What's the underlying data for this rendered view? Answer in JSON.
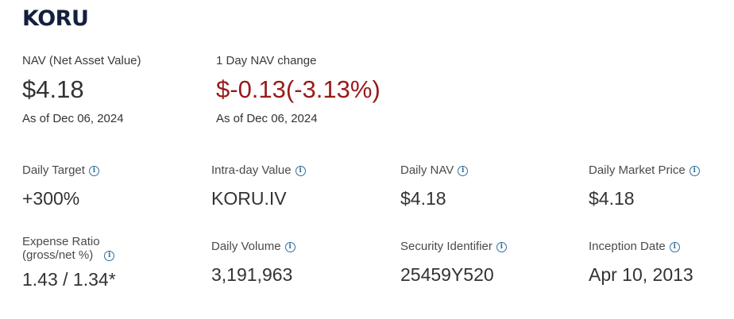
{
  "fund": {
    "ticker": "KORU"
  },
  "nav": {
    "label": "NAV (Net Asset Value)",
    "value": "$4.18",
    "as_of": "As of Dec 06, 2024"
  },
  "nav_change": {
    "label": "1 Day NAV change",
    "value": "$-0.13(-3.13%)",
    "as_of": "As of Dec 06, 2024",
    "color": "#9a1a1a"
  },
  "metrics": [
    {
      "label": "Daily Target",
      "value": "+300%"
    },
    {
      "label": "Intra-day Value",
      "value": "KORU.IV"
    },
    {
      "label": "Daily NAV",
      "value": "$4.18"
    },
    {
      "label": "Daily Market Price",
      "value": "$4.18"
    },
    {
      "label_line1": "Expense Ratio",
      "label_line2": "(gross/net %)",
      "value": "1.43 / 1.34*"
    },
    {
      "label": "Daily Volume",
      "value": "3,191,963"
    },
    {
      "label": "Security Identifier",
      "value": "25459Y520"
    },
    {
      "label": "Inception Date",
      "value": "Apr 10, 2013"
    }
  ],
  "icons": {
    "info": "info-circle-icon",
    "info_glyph": "i"
  }
}
